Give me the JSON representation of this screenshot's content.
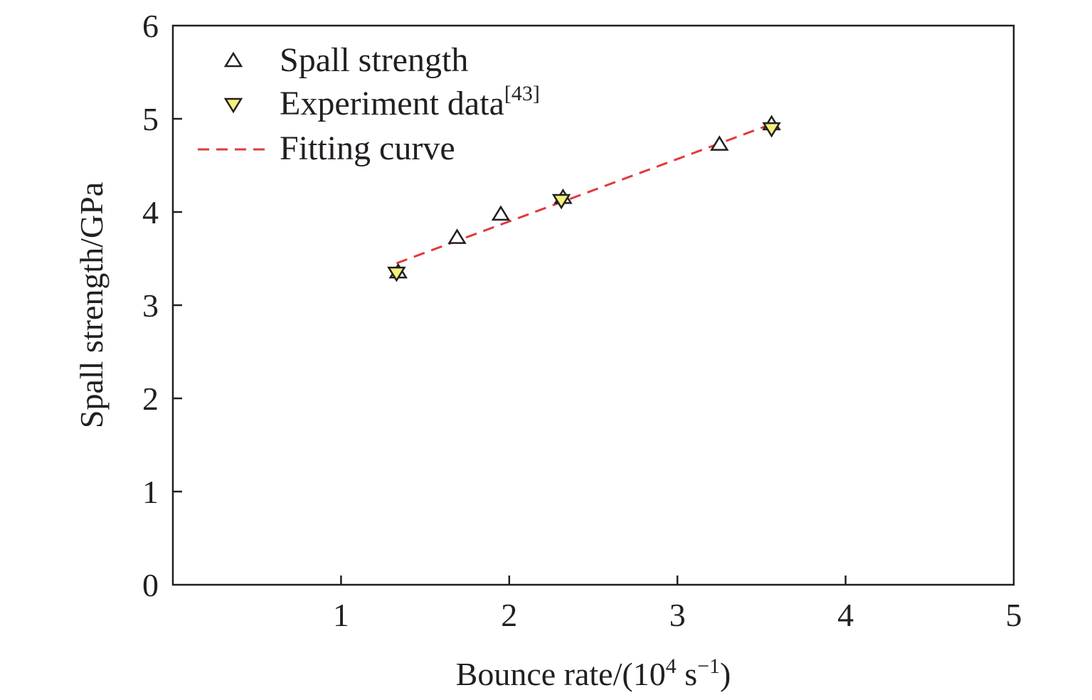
{
  "chart_data": {
    "type": "scatter",
    "xlabel": {
      "main": "Bounce rate/(10",
      "exp1": "4",
      "mid": " s",
      "exp2": "−1",
      "end": ")"
    },
    "ylabel": "Spall strength/GPa",
    "xlim": [
      0,
      5
    ],
    "ylim": [
      0,
      6
    ],
    "xticks": [
      1,
      2,
      3,
      4,
      5
    ],
    "xtick_labels": [
      "1",
      "2",
      "3",
      "4",
      "5"
    ],
    "yticks": [
      0,
      1,
      2,
      3,
      4,
      5,
      6
    ],
    "ytick_labels": [
      "0",
      "1",
      "2",
      "3",
      "4",
      "5",
      "6"
    ],
    "grid": false,
    "legend_position": "top-left",
    "series": [
      {
        "name": "Spall strength",
        "marker": "triangle-up",
        "color": "#ffffff",
        "x": [
          1.34,
          1.69,
          1.95,
          2.32,
          3.25,
          3.56
        ],
        "y": [
          3.35,
          3.72,
          3.97,
          4.15,
          4.72,
          4.94
        ]
      },
      {
        "name": "Experiment data",
        "name_superscript": "[43]",
        "marker": "triangle-down",
        "color": "#f5f07a",
        "x": [
          1.33,
          2.31,
          3.56
        ],
        "y": [
          3.35,
          4.13,
          4.9
        ]
      },
      {
        "name": "Fitting curve",
        "style": "dashed",
        "color": "#e03a3e",
        "x": [
          1.33,
          3.57
        ],
        "y": [
          3.45,
          4.95
        ]
      }
    ]
  }
}
